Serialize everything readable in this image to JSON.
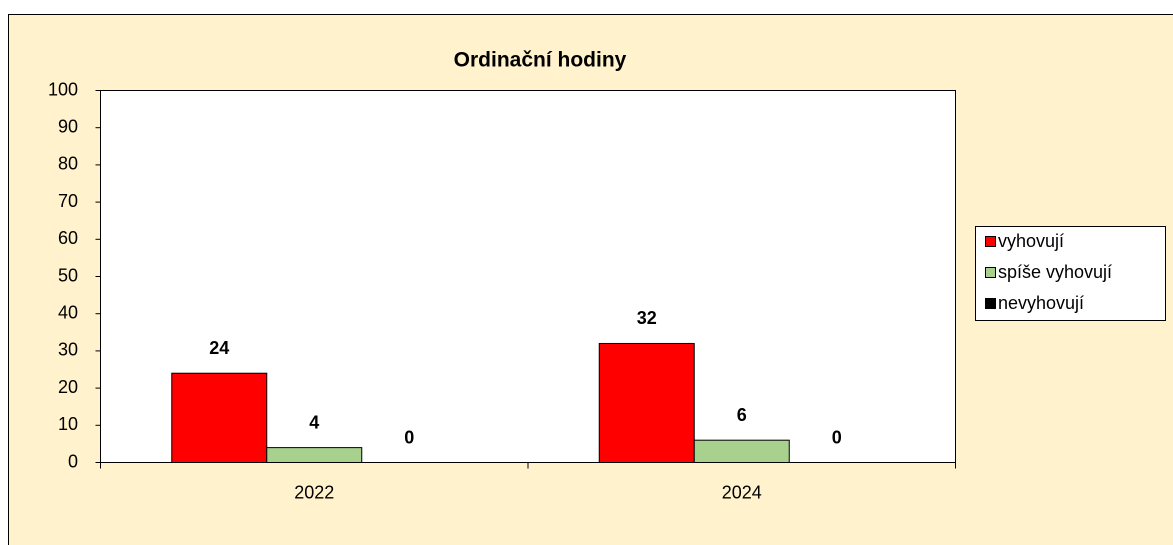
{
  "chart_data": {
    "type": "bar",
    "title": "Ordinační hodiny",
    "categories": [
      "2022",
      "2024"
    ],
    "series": [
      {
        "name": "vyhovují",
        "color": "#ff0000",
        "values": [
          24,
          32
        ]
      },
      {
        "name": "spíše vyhovují",
        "color": "#a9d18e",
        "values": [
          4,
          6
        ]
      },
      {
        "name": "nevyhovují",
        "color": "#000000",
        "values": [
          0,
          0
        ]
      }
    ],
    "ylim": [
      0,
      100
    ],
    "yticks": [
      0,
      10,
      20,
      30,
      40,
      50,
      60,
      70,
      80,
      90,
      100
    ],
    "legend": "right"
  }
}
